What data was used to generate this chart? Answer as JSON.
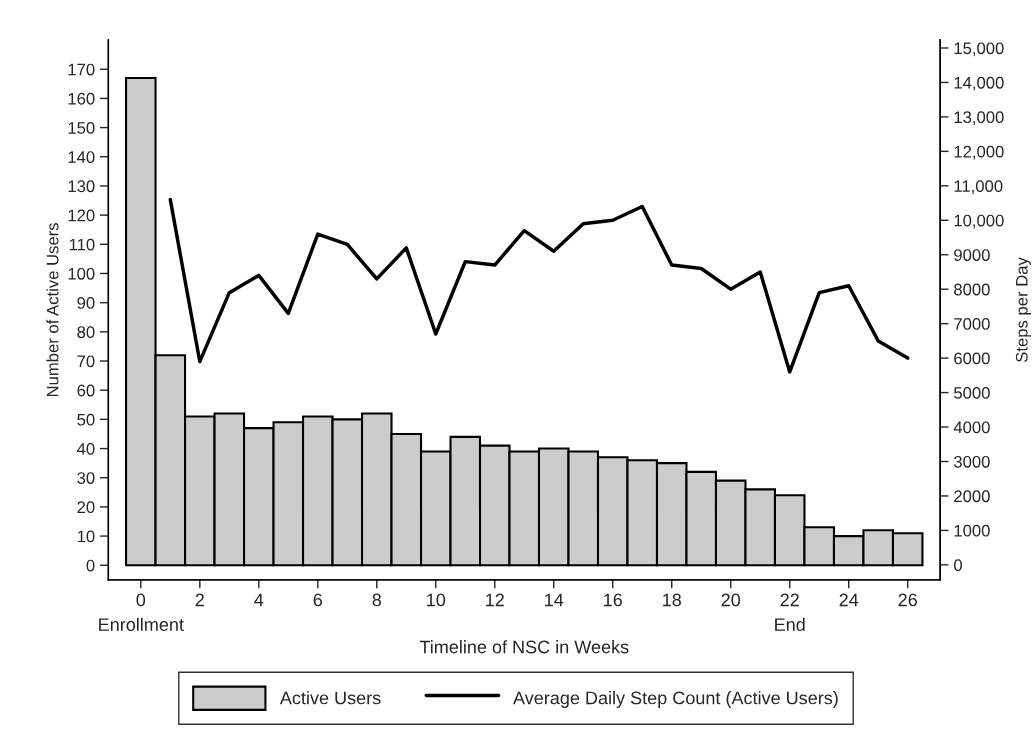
{
  "chart_data": {
    "type": "bar",
    "xlabel": "Timeline of NSC in Weeks",
    "ylabel": "Number of Active Users",
    "y2label": "Steps per Day",
    "x": [
      0,
      1,
      2,
      3,
      4,
      5,
      6,
      7,
      8,
      9,
      10,
      11,
      12,
      13,
      14,
      15,
      16,
      17,
      18,
      19,
      20,
      21,
      22,
      23,
      24,
      25,
      26
    ],
    "series": [
      {
        "name": "Active Users",
        "color": "#cccccc",
        "values": [
          167,
          72,
          51,
          52,
          47,
          49,
          51,
          50,
          52,
          45,
          39,
          44,
          41,
          39,
          40,
          39,
          37,
          36,
          35,
          32,
          29,
          26,
          24,
          13,
          10,
          12,
          11
        ]
      },
      {
        "name": "Average Daily Step Count (Active Users)",
        "type": "line",
        "axis": "y2",
        "color": "#000000",
        "x": [
          1,
          2,
          3,
          4,
          5,
          6,
          7,
          8,
          9,
          10,
          11,
          12,
          13,
          14,
          15,
          16,
          17,
          18,
          19,
          20,
          21,
          22,
          23,
          24,
          25,
          26
        ],
        "values": [
          10600,
          5900,
          7900,
          8400,
          7300,
          9600,
          9300,
          8300,
          9200,
          6700,
          8800,
          8700,
          9700,
          9100,
          9900,
          10000,
          10400,
          8700,
          8600,
          8000,
          8500,
          5600,
          7900,
          8100,
          6500,
          6000
        ]
      }
    ],
    "xlim": [
      -1.1,
      27.1
    ],
    "xticks": [
      {
        "value": 0,
        "label": "0\nEnrollment"
      },
      2,
      4,
      6,
      8,
      10,
      12,
      14,
      16,
      18,
      20,
      {
        "value": 22,
        "label": "22\nEnd"
      },
      24,
      26
    ],
    "ylim": [
      -5,
      180
    ],
    "yticks": [
      0,
      10,
      20,
      30,
      40,
      50,
      60,
      70,
      80,
      90,
      100,
      110,
      120,
      130,
      140,
      150,
      160,
      170
    ],
    "y2lim": [
      -435,
      15230
    ],
    "y2ticks": [
      0,
      1000,
      2000,
      3000,
      4000,
      5000,
      6000,
      7000,
      8000,
      9000,
      {
        "value": 10000,
        "label": "10,000"
      },
      {
        "value": 11000,
        "label": "11,000"
      },
      {
        "value": 12000,
        "label": "12,000"
      },
      {
        "value": 13000,
        "label": "13,000"
      },
      {
        "value": 14000,
        "label": "14,000"
      },
      {
        "value": 15000,
        "label": "15,000"
      }
    ],
    "grid": false,
    "legend": "bottom",
    "line_style": "solid",
    "marker": "none"
  }
}
